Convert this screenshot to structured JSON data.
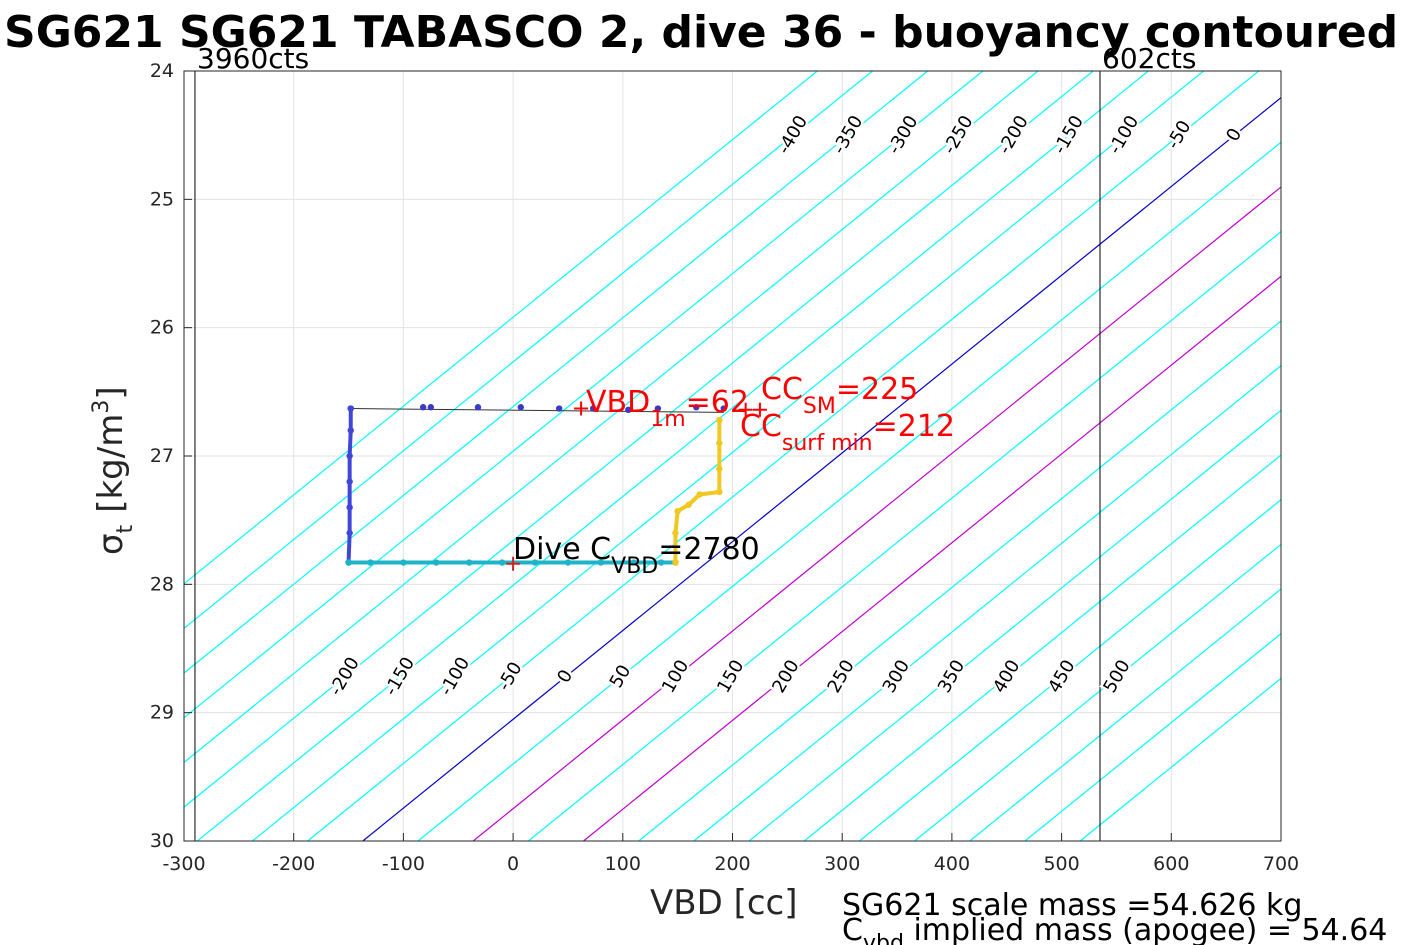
{
  "chart_data": {
    "type": "scatter",
    "title": "SG621 SG621 TABASCO 2, dive 36 - buoyancy contoured",
    "xlabel": "VBD [cc]",
    "ylabel_main": "σ",
    "ylabel_sub": "t",
    "ylabel_unit": "[kg/m",
    "ylabel_sup": "3",
    "ylabel_close": "]",
    "xlim": [
      -300,
      700
    ],
    "ylim": [
      24,
      30
    ],
    "y_reversed": true,
    "grid": true,
    "xticks": [
      -300,
      -200,
      -100,
      0,
      100,
      200,
      300,
      400,
      500,
      600,
      700
    ],
    "yticks": [
      24,
      25,
      26,
      27,
      28,
      29,
      30
    ],
    "vbd_limits": [
      {
        "label": "3960cts",
        "x": -290
      },
      {
        "label": "602cts",
        "x": 535
      }
    ],
    "contours": {
      "values": [
        -450,
        -400,
        -350,
        -300,
        -250,
        -200,
        -150,
        -100,
        -50,
        0,
        50,
        100,
        150,
        200,
        250,
        300,
        350,
        400,
        450,
        500,
        550,
        600,
        650
      ],
      "slope_cc_per_unit": 144.5,
      "x_at_sigma30": [
        -288,
        -238,
        -188,
        -137,
        -87,
        -37,
        13,
        63
      ],
      "zero_contour_x_at_sigma30": -137,
      "colors": {
        "default": "#00ffff",
        "zero": "#0000cd",
        "highlight": "#c000d0"
      },
      "highlight_values": [
        100,
        200
      ],
      "upper_labels": [
        "-400",
        "-350",
        "-300",
        "-250",
        "-200",
        "-150",
        "-100",
        "-50",
        "0",
        "50",
        "100",
        "150",
        "200",
        "250",
        "300",
        "350",
        "400",
        "450",
        "500"
      ],
      "lower_labels": [
        "-200",
        "-150",
        "-100",
        "-50",
        "0",
        "50",
        "100",
        "150",
        "200",
        "250",
        "300",
        "350",
        "400",
        "450",
        "500"
      ]
    },
    "series": [
      {
        "segment": "surface",
        "color": "#3a3ac8",
        "points": [
          [
            -148,
            26.63
          ],
          [
            -82,
            26.62
          ],
          [
            -75,
            26.62
          ],
          [
            -32,
            26.62
          ],
          [
            7,
            26.62
          ],
          [
            42,
            26.63
          ],
          [
            73,
            26.63
          ],
          [
            105,
            26.64
          ],
          [
            132,
            26.63
          ],
          [
            167,
            26.62
          ],
          [
            192,
            26.63
          ]
        ]
      },
      {
        "segment": "descent",
        "color": "#4046d8",
        "points": [
          [
            -148,
            26.63
          ],
          [
            -148,
            26.8
          ],
          [
            -149,
            27.0
          ],
          [
            -149,
            27.2
          ],
          [
            -149,
            27.4
          ],
          [
            -149,
            27.6
          ],
          [
            -150,
            27.83
          ]
        ]
      },
      {
        "segment": "bottom",
        "color": "#1eb4c8",
        "points": [
          [
            -150,
            27.83
          ],
          [
            -130,
            27.83
          ],
          [
            -100,
            27.83
          ],
          [
            -70,
            27.83
          ],
          [
            -40,
            27.83
          ],
          [
            -10,
            27.83
          ],
          [
            20,
            27.83
          ],
          [
            50,
            27.83
          ],
          [
            80,
            27.83
          ],
          [
            110,
            27.83
          ],
          [
            135,
            27.83
          ],
          [
            148,
            27.83
          ]
        ]
      },
      {
        "segment": "climb",
        "color": "#f0c820",
        "points": [
          [
            148,
            27.83
          ],
          [
            148,
            27.6
          ],
          [
            150,
            27.43
          ],
          [
            160,
            27.38
          ],
          [
            170,
            27.3
          ],
          [
            188,
            27.28
          ],
          [
            188,
            27.1
          ],
          [
            188,
            26.9
          ],
          [
            188,
            26.72
          ]
        ]
      }
    ],
    "line_path": [
      [
        -148,
        26.63
      ],
      [
        192,
        26.66
      ]
    ],
    "markers": [
      {
        "label": "Dive C",
        "sub": "VBD",
        "value_text": "=2780",
        "x": 0,
        "y": 27.84,
        "color": "#cc2222"
      },
      {
        "label": "VBD",
        "sub": "1m",
        "value_text": "=62",
        "x": 62,
        "y": 26.63,
        "color": "#ff0000"
      },
      {
        "label": "CC",
        "sub": "SM",
        "value_text": "=225",
        "x": 225,
        "y": 26.64,
        "color": "#ff0000"
      },
      {
        "label": "CC",
        "sub": "surf min",
        "value_text": "=212",
        "x": 212,
        "y": 26.64,
        "color": "#ff0000"
      }
    ],
    "footer": {
      "line1": "SG621 scale mass =54.626 kg",
      "line2_main": "C",
      "line2_sub": "vbd",
      "line2_rest": " implied mass (apogee) = 54.64"
    }
  }
}
